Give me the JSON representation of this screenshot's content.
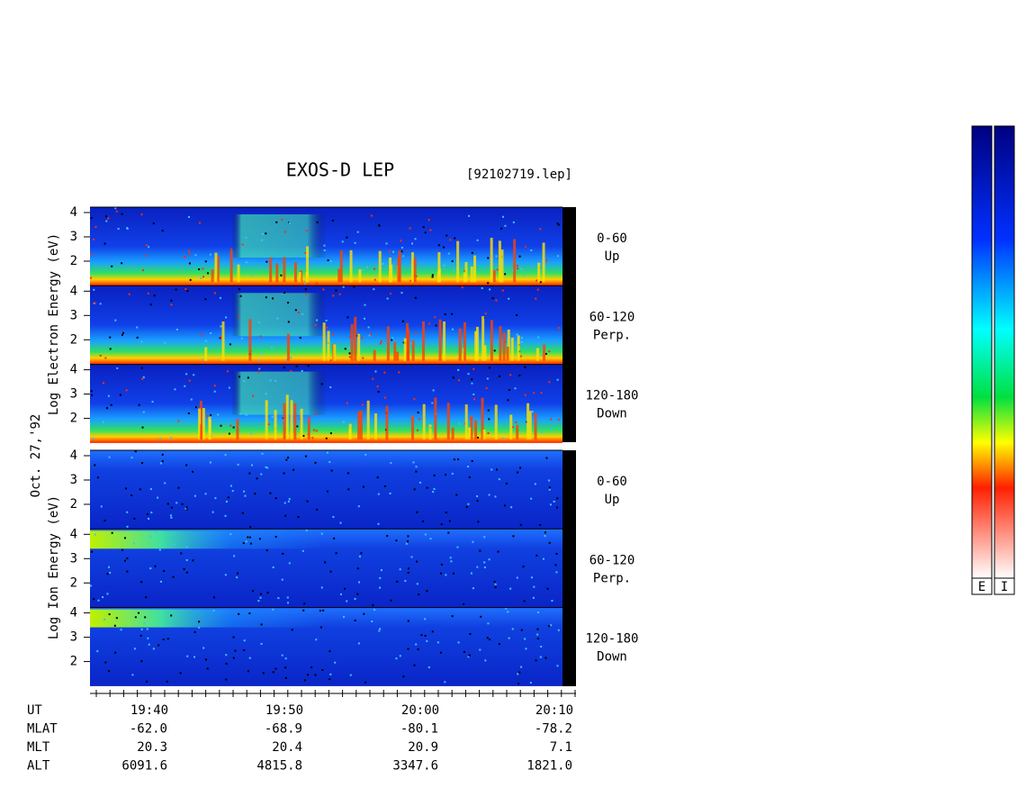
{
  "header": {
    "title": "EXOS-D LEP",
    "file": "[92102719.lep]"
  },
  "date": "Oct. 27,'92",
  "electron": {
    "axis_label": "Log Electron Energy (eV)",
    "panels": [
      {
        "ticks": [
          4,
          3,
          2
        ],
        "angle": "0-60",
        "direction": "Up"
      },
      {
        "ticks": [
          4,
          3,
          2
        ],
        "angle": "60-120",
        "direction": "Perp."
      },
      {
        "ticks": [
          4,
          3,
          2
        ],
        "angle": "120-180",
        "direction": "Down"
      }
    ]
  },
  "ion": {
    "axis_label": "Log Ion Energy (eV)",
    "panels": [
      {
        "ticks": [
          4,
          3,
          2
        ],
        "angle": "0-60",
        "direction": "Up"
      },
      {
        "ticks": [
          4,
          3,
          2
        ],
        "angle": "60-120",
        "direction": "Perp."
      },
      {
        "ticks": [
          4,
          3,
          2
        ],
        "angle": "120-180",
        "direction": "Down"
      }
    ]
  },
  "orbit": {
    "rows": [
      [
        "UT",
        "19:40",
        "19:50",
        "20:00",
        "20:10"
      ],
      [
        "MLAT",
        "-62.0",
        "-68.9",
        "-80.1",
        "-78.2"
      ],
      [
        "MLT",
        "20.3",
        "20.4",
        "20.9",
        "7.1"
      ],
      [
        "ALT",
        "6091.6",
        "4815.8",
        "3347.6",
        "1821.0"
      ]
    ]
  },
  "colorbars": [
    "E",
    "I"
  ]
}
